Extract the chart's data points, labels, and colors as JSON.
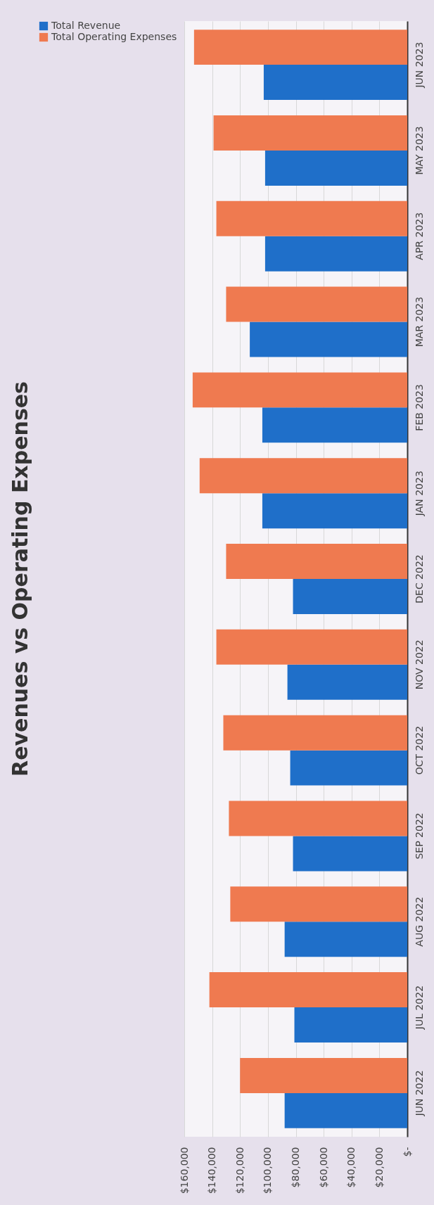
{
  "chart_data": {
    "type": "bar",
    "orientation": "horizontal",
    "title": "Revenues vs Operating Expenses",
    "categories": [
      "JUN 2023",
      "MAY 2023",
      "APR 2023",
      "MAR 2023",
      "FEB 2023",
      "JAN 2023",
      "DEC 2022",
      "NOV 2022",
      "OCT 2022",
      "SEP 2022",
      "AUG 2022",
      "JUL 2022",
      "JUN 2022"
    ],
    "series": [
      {
        "name": "Total Revenue",
        "color": "#1f6fc9",
        "values": [
          103000,
          102000,
          102000,
          113000,
          104000,
          104000,
          82000,
          86000,
          84000,
          82000,
          88000,
          81000,
          88000
        ]
      },
      {
        "name": "Total Operating Expenses",
        "color": "#ef7a50",
        "values": [
          153000,
          139000,
          137000,
          130000,
          154000,
          149000,
          130000,
          137000,
          132000,
          128000,
          127000,
          142000,
          120000
        ]
      }
    ],
    "xlim": [
      160000,
      0
    ],
    "xticks": [
      {
        "value": 160000,
        "label": "$160,000"
      },
      {
        "value": 140000,
        "label": "$140,000"
      },
      {
        "value": 120000,
        "label": "$120,000"
      },
      {
        "value": 100000,
        "label": "$100,000"
      },
      {
        "value": 80000,
        "label": "$80,000"
      },
      {
        "value": 60000,
        "label": "$60,000"
      },
      {
        "value": 40000,
        "label": "$40,000"
      },
      {
        "value": 20000,
        "label": "$20,000"
      },
      {
        "value": 0,
        "label": "$-"
      }
    ],
    "grid": "x",
    "legend": "left"
  }
}
